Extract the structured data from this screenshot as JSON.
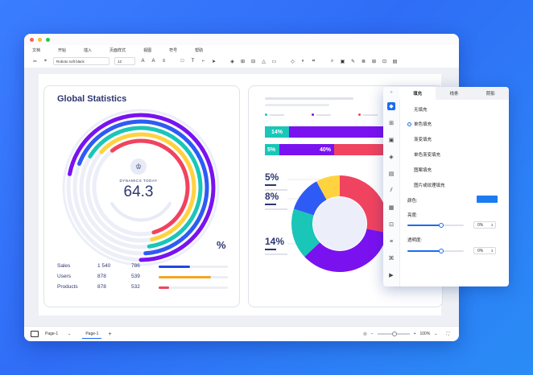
{
  "menu": [
    "文档",
    "开始",
    "插入",
    "页面样式",
    "视图",
    "符号",
    "帮助"
  ],
  "toolbar": {
    "font": "Roboto",
    "font_extra": "soft black",
    "size": "12"
  },
  "dashboard": {
    "title": "Global Statistics",
    "gauge_label": "DYNAMICS TODAY",
    "gauge_value": "64.3",
    "percent_sign": "%",
    "rows": [
      {
        "name": "Sales",
        "a": "1 540",
        "b": "786",
        "color": "#1e49e2",
        "fill": 0.45
      },
      {
        "name": "Users",
        "a": "878",
        "b": "539",
        "color": "#f5a623",
        "fill": 0.75
      },
      {
        "name": "Products",
        "a": "878",
        "b": "532",
        "color": "#f0435f",
        "fill": 0.15
      }
    ]
  },
  "rings": {
    "colors": [
      "#7a12f0",
      "#2e5bf5",
      "#19c6b7",
      "#ffd23f",
      "#f0435f"
    ],
    "fractions": [
      0.72,
      0.68,
      0.64,
      0.6,
      0.56
    ]
  },
  "bars_card": {
    "bar1_left": "14%",
    "bar1_right": "62",
    "bar2_left": "5%",
    "bar2_right": "40%",
    "labels": [
      "5%",
      "8%",
      "14%"
    ],
    "legend_colors": [
      "#19c6b7",
      "#7a12f0",
      "#f0435f"
    ]
  },
  "donut": {
    "segments": [
      {
        "value": 28,
        "color": "#f0435f"
      },
      {
        "value": 35,
        "color": "#7a12f0"
      },
      {
        "value": 17,
        "color": "#19c6b7"
      },
      {
        "value": 12,
        "color": "#2e5bf5"
      },
      {
        "value": 8,
        "color": "#ffd23f"
      }
    ]
  },
  "panel": {
    "tabs": [
      "填充",
      "线条",
      "阴影"
    ],
    "options": [
      "无填充",
      "单色填充",
      "渐变填充",
      "单色渐变填充",
      "图案填充",
      "图片或纹理填充"
    ],
    "color_label": "颜色:",
    "color_value": "#1a7cf0",
    "brightness_label": "亮度:",
    "brightness_value": "0%",
    "opacity_label": "透明度:",
    "opacity_value": "0%"
  },
  "status": {
    "page_select": "Page-1",
    "page_tab": "Page-1",
    "zoom": "100%"
  }
}
